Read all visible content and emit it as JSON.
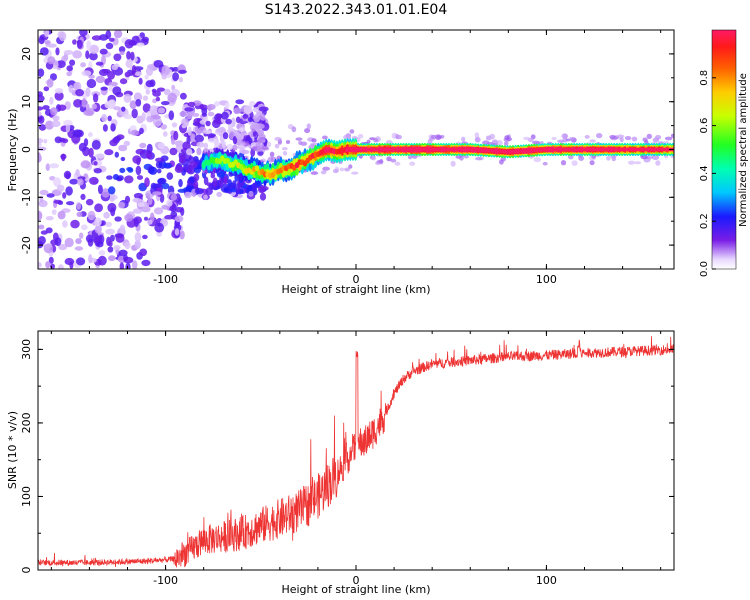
{
  "title": "S143.2022.343.01.01.E04",
  "colors": {
    "snr_line": "#ee3333",
    "spectrum_ridge": "#ff2a2a",
    "scatter_purple": "#7a1ee6",
    "axes": "#000000"
  },
  "chart_data": [
    {
      "type": "heatmap",
      "title": "",
      "xlabel": "Height of straight line (km)",
      "ylabel": "Frequency (Hz)",
      "xlim": [
        -167,
        167
      ],
      "ylim": [
        -25,
        25
      ],
      "x_ticks": [
        -100,
        0,
        100
      ],
      "x_tick_labels": [
        "-100",
        "0",
        "100"
      ],
      "y_ticks": [
        -20,
        -10,
        0,
        10,
        20
      ],
      "y_tick_labels": [
        "-20",
        "-10",
        "0",
        "10",
        "20"
      ],
      "grid": false,
      "colorbar": {
        "label": "Normalized spectral amplitude",
        "range": [
          0,
          1
        ],
        "ticks": [
          0.0,
          0.2,
          0.4,
          0.6,
          0.8
        ],
        "tick_labels": [
          "0.0",
          "0.2",
          "0.4",
          "0.6",
          "0.8"
        ],
        "colormap": "rainbow (purple-blue-cyan-green-yellow-orange-red-magenta)"
      },
      "ridge": {
        "x": [
          -80,
          -72,
          -65,
          -58,
          -52,
          -46,
          -40,
          -35,
          -30,
          -25,
          -20,
          -15,
          -10,
          -5,
          0,
          10,
          20,
          40,
          60,
          80,
          100,
          120,
          140,
          167
        ],
        "freq": [
          -3,
          -2,
          -3,
          -4,
          -4.5,
          -5,
          -4.5,
          -4,
          -3,
          -2,
          -1,
          0,
          -0.5,
          0,
          0,
          0,
          0,
          0,
          0,
          -0.5,
          0,
          0,
          0,
          0
        ],
        "amplitude": [
          0.2,
          0.3,
          0.35,
          0.4,
          0.45,
          0.5,
          0.55,
          0.55,
          0.6,
          0.6,
          0.65,
          0.7,
          0.7,
          0.75,
          0.8,
          0.9,
          0.95,
          0.95,
          0.85,
          0.9,
          0.9,
          0.85,
          0.8,
          0.75
        ]
      }
    },
    {
      "type": "line",
      "title": "",
      "xlabel": "Height of straight line (km)",
      "ylabel": "SNR (10 * v/v)",
      "xlim": [
        -167,
        167
      ],
      "ylim": [
        0,
        325
      ],
      "x_ticks": [
        -100,
        0,
        100
      ],
      "x_tick_labels": [
        "-100",
        "0",
        "100"
      ],
      "y_ticks": [
        0,
        100,
        200,
        300
      ],
      "y_tick_labels": [
        "0",
        "100",
        "200",
        "300"
      ],
      "grid": false,
      "series": [
        {
          "x": [
            -167,
            -140,
            -110,
            -95,
            -88,
            -80,
            -70,
            -60,
            -50,
            -40,
            -30,
            -20,
            -10,
            -5,
            0,
            5,
            10,
            15,
            20,
            25,
            30,
            40,
            60,
            80,
            100,
            120,
            140,
            167
          ],
          "snr": [
            10,
            10,
            12,
            15,
            25,
            40,
            45,
            50,
            60,
            70,
            80,
            100,
            130,
            150,
            170,
            175,
            190,
            210,
            240,
            260,
            270,
            280,
            285,
            290,
            292,
            295,
            297,
            300
          ]
        }
      ]
    }
  ]
}
